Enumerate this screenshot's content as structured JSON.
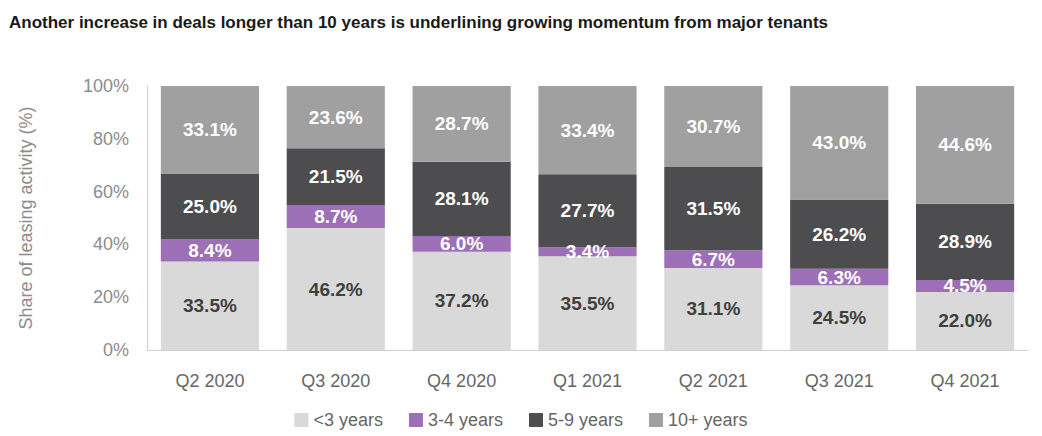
{
  "chart_data": {
    "type": "bar",
    "title": "Another increase in deals longer than 10 years is underlining growing momentum from major tenants",
    "y_label": "Share of leasing activity (%)",
    "categories": [
      "Q2 2020",
      "Q3 2020",
      "Q4 2020",
      "Q1 2021",
      "Q2 2021",
      "Q3 2021",
      "Q4 2021"
    ],
    "stacked": true,
    "data_labels": true,
    "grid": false,
    "legend": "bottom",
    "ylim": [
      0,
      100
    ],
    "yticks": [
      {
        "value": 0,
        "label": "0%"
      },
      {
        "value": 20,
        "label": "20%"
      },
      {
        "value": 40,
        "label": "40%"
      },
      {
        "value": 60,
        "label": "60%"
      },
      {
        "value": 80,
        "label": "80%"
      },
      {
        "value": 100,
        "label": "100%"
      }
    ],
    "series": [
      {
        "name": "<3 years",
        "color": "#d9d9d9",
        "values": [
          33.5,
          46.2,
          37.2,
          35.5,
          31.1,
          24.5,
          22.0
        ],
        "value_labels": [
          "33.5%",
          "46.2%",
          "37.2%",
          "35.5%",
          "31.1%",
          "24.5%",
          "22.0%"
        ]
      },
      {
        "name": "3-4 years",
        "color": "#9c6fb6",
        "values": [
          8.4,
          8.7,
          6.0,
          3.4,
          6.7,
          6.3,
          4.5
        ],
        "value_labels": [
          "8.4%",
          "8.7%",
          "6.0%",
          "3.4%",
          "6.7%",
          "6.3%",
          "4.5%"
        ]
      },
      {
        "name": "5-9 years",
        "color": "#4d4d4f",
        "values": [
          25.0,
          21.5,
          28.1,
          27.7,
          31.5,
          26.2,
          28.9
        ],
        "value_labels": [
          "25.0%",
          "21.5%",
          "28.1%",
          "27.7%",
          "31.5%",
          "26.2%",
          "28.9%"
        ]
      },
      {
        "name": "10+ years",
        "color": "#a0a0a0",
        "values": [
          33.1,
          23.6,
          28.7,
          33.4,
          30.7,
          43.0,
          44.6
        ],
        "value_labels": [
          "33.1%",
          "23.6%",
          "28.7%",
          "33.4%",
          "30.7%",
          "43.0%",
          "44.6%"
        ]
      }
    ]
  }
}
